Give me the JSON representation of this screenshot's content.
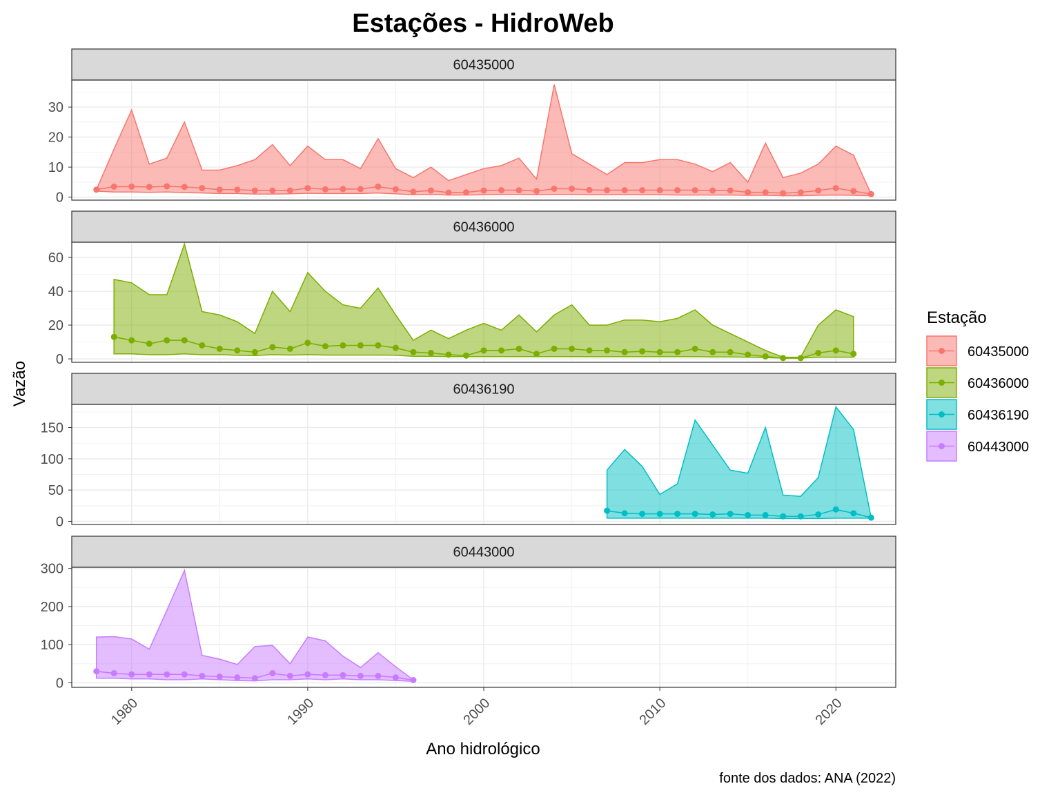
{
  "chart_data": {
    "type": "area",
    "title": "Estações - HidroWeb",
    "xlabel": "Ano hidrológico",
    "ylabel": "Vazão",
    "caption": "fonte dos dados: ANA (2022)",
    "x_ticks": [
      1980,
      1990,
      2000,
      2010,
      2020
    ],
    "xlim": [
      1976.6,
      2023.4
    ],
    "grid": true,
    "legend_position": "right",
    "legend_title": "Estação",
    "series": [
      {
        "name": "60435000",
        "color": "#F8766D",
        "ylim": [
          -1,
          39
        ],
        "y_ticks": [
          0,
          10,
          20,
          30
        ],
        "years": [
          1978,
          1979,
          1980,
          1981,
          1982,
          1983,
          1984,
          1985,
          1986,
          1987,
          1988,
          1989,
          1990,
          1991,
          1992,
          1993,
          1994,
          1995,
          1996,
          1997,
          1998,
          1999,
          2000,
          2001,
          2002,
          2003,
          2004,
          2005,
          2006,
          2007,
          2008,
          2009,
          2010,
          2011,
          2012,
          2013,
          2014,
          2015,
          2016,
          2017,
          2018,
          2019,
          2020,
          2021,
          2022
        ],
        "max": [
          2.5,
          16,
          29,
          11,
          13,
          25,
          9,
          9,
          10.5,
          12.5,
          17.5,
          10.5,
          17,
          12.5,
          12.5,
          9.5,
          19.5,
          9.5,
          6.5,
          10,
          5.5,
          7.5,
          9.5,
          10.5,
          13,
          6,
          37.5,
          14.5,
          11,
          7.5,
          11.5,
          11.5,
          12.5,
          12.5,
          11,
          8.5,
          11.5,
          5,
          18,
          6.5,
          8,
          11,
          17,
          14,
          1
        ],
        "mean": [
          2.5,
          3.5,
          3.5,
          3.4,
          3.6,
          3.4,
          3,
          2.5,
          2.5,
          2.2,
          2.2,
          2.2,
          3,
          2.6,
          2.7,
          2.7,
          3.5,
          2.6,
          1.8,
          2.2,
          1.5,
          1.6,
          2.2,
          2.3,
          2.3,
          2,
          2.8,
          2.8,
          2.4,
          2.3,
          2.3,
          2.3,
          2.3,
          2.3,
          2.3,
          2.2,
          2.2,
          1.6,
          1.6,
          1.3,
          1.6,
          2.2,
          3,
          2,
          1
        ],
        "min": [
          2,
          1.7,
          1.7,
          1.6,
          1.7,
          1.5,
          1.4,
          1.2,
          1.2,
          1,
          1,
          1.1,
          1.3,
          1.2,
          1.2,
          1.2,
          1.4,
          1.1,
          0.8,
          0.9,
          0.7,
          0.7,
          0.8,
          0.9,
          0.9,
          0.8,
          0.9,
          0.9,
          0.8,
          0.8,
          0.8,
          0.8,
          0.8,
          0.7,
          0.7,
          0.7,
          0.7,
          0.6,
          0.6,
          0.5,
          0.5,
          0.6,
          0.7,
          0.6,
          0.5
        ]
      },
      {
        "name": "60436000",
        "color": "#7CAE00",
        "ylim": [
          -2,
          69
        ],
        "y_ticks": [
          0,
          20,
          40,
          60
        ],
        "years": [
          1979,
          1980,
          1981,
          1982,
          1983,
          1984,
          1985,
          1986,
          1987,
          1988,
          1989,
          1990,
          1991,
          1992,
          1993,
          1994,
          1995,
          1996,
          1997,
          1998,
          1999,
          2000,
          2001,
          2002,
          2003,
          2004,
          2005,
          2006,
          2007,
          2008,
          2009,
          2010,
          2011,
          2012,
          2013,
          2014,
          2015,
          2016,
          2017,
          2018,
          2019,
          2020,
          2021
        ],
        "max": [
          47,
          45,
          38,
          38,
          68,
          28,
          26,
          22,
          15,
          40,
          28,
          51,
          40,
          32,
          30,
          42,
          26,
          11,
          17,
          12,
          17,
          21,
          17,
          26,
          16,
          26,
          32,
          20,
          20,
          23,
          23,
          22,
          24,
          29,
          20,
          15,
          10,
          5,
          1,
          1,
          20,
          29,
          25
        ],
        "mean": [
          13,
          11,
          9,
          11,
          11,
          8,
          6,
          5,
          4,
          7,
          6,
          9.5,
          7.5,
          8,
          8,
          8,
          6.5,
          4,
          3.5,
          2.5,
          2,
          5,
          5,
          6,
          3,
          6,
          6,
          5,
          5,
          4,
          4.5,
          4,
          4,
          6,
          4,
          4,
          2.5,
          1.5,
          0.5,
          0.5,
          3.5,
          5,
          3
        ],
        "min": [
          3,
          3,
          2.5,
          2.5,
          3,
          2.5,
          2.5,
          2.2,
          2,
          2.5,
          2.3,
          2.5,
          2.3,
          2.3,
          2.3,
          2.3,
          2.2,
          1.5,
          1.5,
          1.4,
          1.4,
          1.4,
          1.4,
          1.4,
          1.3,
          1.4,
          1.4,
          1.3,
          1.3,
          1.3,
          1.3,
          1.3,
          1.3,
          1.3,
          1.2,
          1.2,
          1,
          0.8,
          0.5,
          0.5,
          1,
          1,
          1
        ]
      },
      {
        "name": "60436190",
        "color": "#00BFC4",
        "ylim": [
          -5,
          187
        ],
        "y_ticks": [
          0,
          50,
          100,
          150
        ],
        "years": [
          2007,
          2008,
          2009,
          2010,
          2011,
          2012,
          2013,
          2014,
          2015,
          2016,
          2017,
          2018,
          2019,
          2020,
          2021,
          2022
        ],
        "max": [
          82,
          115,
          88,
          43,
          60,
          162,
          122,
          82,
          77,
          150,
          42,
          40,
          70,
          183,
          147,
          6
        ],
        "mean": [
          17,
          13,
          12,
          12,
          12,
          12,
          11,
          12,
          10,
          10,
          8,
          8,
          11,
          19,
          13,
          6
        ],
        "min": [
          5,
          5,
          5,
          5,
          5,
          5,
          5,
          5,
          5,
          5,
          4.5,
          4.5,
          4.5,
          5,
          5,
          5
        ]
      },
      {
        "name": "60443000",
        "color": "#C77CFF",
        "ylim": [
          -12,
          303
        ],
        "y_ticks": [
          0,
          100,
          200,
          300
        ],
        "years": [
          1978,
          1979,
          1980,
          1981,
          1982,
          1983,
          1984,
          1985,
          1986,
          1987,
          1988,
          1989,
          1990,
          1991,
          1992,
          1993,
          1994,
          1995,
          1996
        ],
        "max": [
          120,
          121,
          115,
          88,
          190,
          295,
          72,
          62,
          48,
          95,
          98,
          50,
          120,
          110,
          70,
          40,
          79,
          42,
          8
        ],
        "mean": [
          30,
          25,
          22,
          22,
          22,
          22,
          18,
          16,
          14,
          12,
          25,
          18,
          22,
          20,
          20,
          18,
          18,
          14,
          7
        ],
        "min": [
          12,
          12,
          10,
          10,
          8,
          8,
          10,
          8,
          6,
          5,
          8,
          8,
          10,
          8,
          10,
          8,
          8,
          6,
          4
        ]
      }
    ]
  }
}
